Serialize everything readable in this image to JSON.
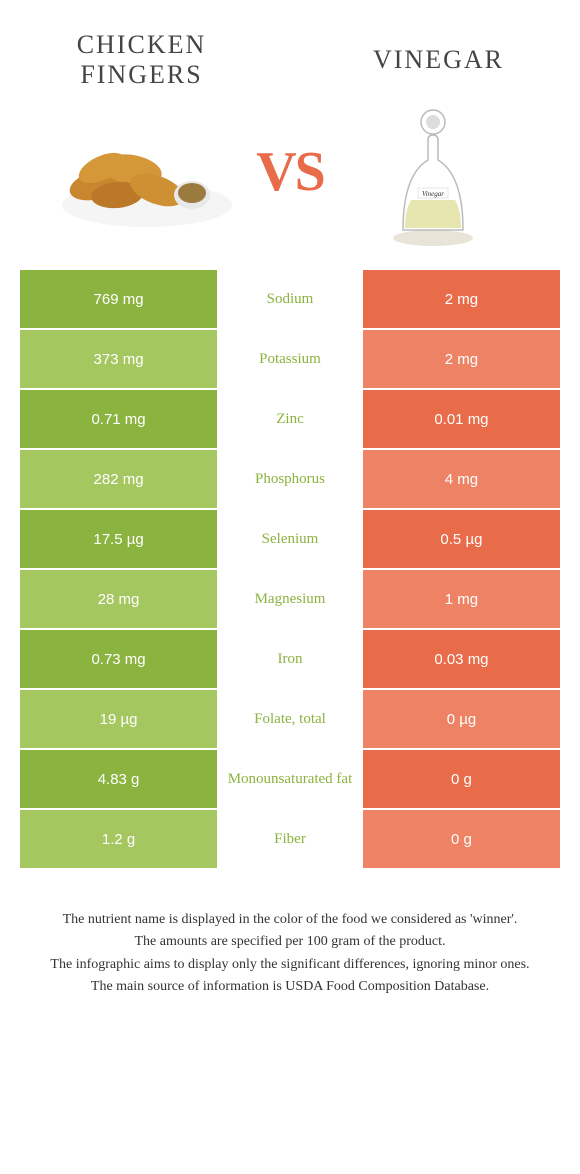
{
  "header": {
    "left_title": "CHICKEN FINGERS",
    "right_title": "VINEGAR",
    "vs_label": "VS"
  },
  "colors": {
    "green": "#8bb33f",
    "orange": "#e86b4a",
    "light_green": "#a5c760",
    "light_orange": "#ed8265"
  },
  "rows": [
    {
      "left": "769 mg",
      "mid": "Sodium",
      "right": "2 mg",
      "winner": "left"
    },
    {
      "left": "373 mg",
      "mid": "Potassium",
      "right": "2 mg",
      "winner": "left"
    },
    {
      "left": "0.71 mg",
      "mid": "Zinc",
      "right": "0.01 mg",
      "winner": "left"
    },
    {
      "left": "282 mg",
      "mid": "Phosphorus",
      "right": "4 mg",
      "winner": "left"
    },
    {
      "left": "17.5 µg",
      "mid": "Selenium",
      "right": "0.5 µg",
      "winner": "left"
    },
    {
      "left": "28 mg",
      "mid": "Magnesium",
      "right": "1 mg",
      "winner": "left"
    },
    {
      "left": "0.73 mg",
      "mid": "Iron",
      "right": "0.03 mg",
      "winner": "left"
    },
    {
      "left": "19 µg",
      "mid": "Folate, total",
      "right": "0 µg",
      "winner": "left"
    },
    {
      "left": "4.83 g",
      "mid": "Monounsaturated fat",
      "right": "0 g",
      "winner": "left"
    },
    {
      "left": "1.2 g",
      "mid": "Fiber",
      "right": "0 g",
      "winner": "left"
    }
  ],
  "footer": {
    "line1": "The nutrient name is displayed in the color of the food we considered as 'winner'.",
    "line2": "The amounts are specified per 100 gram of the product.",
    "line3": "The infographic aims to display only the significant differences, ignoring minor ones.",
    "line4": "The main source of information is USDA Food Composition Database."
  }
}
